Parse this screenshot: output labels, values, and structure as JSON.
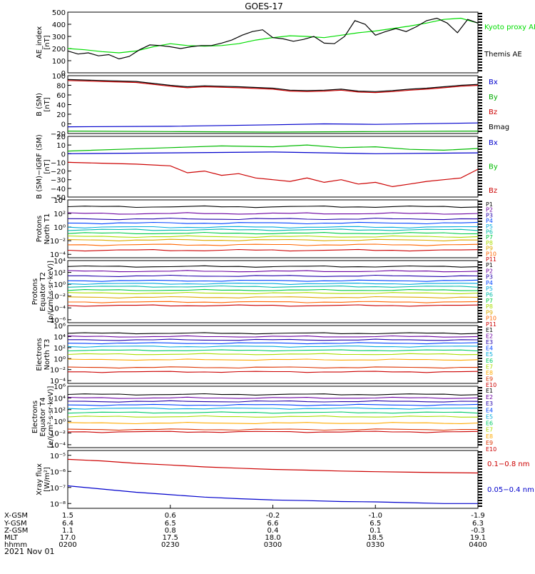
{
  "chart_data": {
    "type": "line",
    "title": "GOES-17",
    "date_label": "2021 Nov 01",
    "x_row_labels": [
      "X-GSM",
      "Y-GSM",
      "Z-GSM",
      "MLT",
      "hhmm"
    ],
    "x_columns": [
      {
        "values": [
          "1.5",
          "6.4",
          "1.1",
          "17.0",
          "0200"
        ]
      },
      {
        "values": [
          "0.6",
          "6.5",
          "0.8",
          "17.5",
          "0230"
        ]
      },
      {
        "values": [
          "-0.2",
          "6.6",
          "0.4",
          "18.0",
          "0300"
        ]
      },
      {
        "values": [
          "-1.0",
          "6.5",
          "0.1",
          "18.5",
          "0330"
        ]
      },
      {
        "values": [
          "-1.9",
          "6.3",
          "-0.3",
          "19.1",
          "0400"
        ]
      }
    ],
    "panels": [
      {
        "id": "ae",
        "ylabel": [
          "AE_index",
          "[nT]"
        ],
        "scale": "linear",
        "ylim": [
          0,
          500
        ],
        "ticks": [
          {
            "v": 0,
            "label": "0"
          },
          {
            "v": 100,
            "label": "100"
          },
          {
            "v": 200,
            "label": "200"
          },
          {
            "v": 300,
            "label": "300"
          },
          {
            "v": 400,
            "label": "400"
          },
          {
            "v": 500,
            "label": "500"
          }
        ],
        "series": [
          {
            "name": "Kyoto proxy AE",
            "color": "#00dd00",
            "x": [
              0,
              5,
              10,
              15,
              20,
              25,
              30,
              35,
              40,
              45,
              50,
              55,
              60,
              65,
              70,
              75,
              80,
              85,
              90,
              95,
              100,
              105,
              110,
              115,
              120
            ],
            "y": [
              200,
              190,
              175,
              165,
              180,
              215,
              240,
              225,
              220,
              225,
              240,
              270,
              290,
              305,
              300,
              290,
              310,
              330,
              345,
              365,
              385,
              410,
              440,
              450,
              410
            ]
          },
          {
            "name": "Themis AE",
            "color": "#000000",
            "x": [
              0,
              3,
              6,
              9,
              12,
              15,
              18,
              21,
              24,
              27,
              30,
              33,
              36,
              39,
              42,
              45,
              48,
              51,
              54,
              57,
              60,
              63,
              66,
              69,
              72,
              75,
              78,
              81,
              84,
              87,
              90,
              93,
              96,
              99,
              102,
              105,
              108,
              111,
              114,
              117,
              120
            ],
            "y": [
              180,
              155,
              165,
              140,
              150,
              115,
              135,
              190,
              230,
              225,
              215,
              200,
              215,
              225,
              225,
              245,
              270,
              310,
              340,
              355,
              290,
              280,
              260,
              275,
              300,
              245,
              240,
              300,
              430,
              400,
              310,
              340,
              365,
              340,
              380,
              430,
              450,
              410,
              330,
              440,
              410
            ]
          }
        ]
      },
      {
        "id": "b",
        "ylabel": [
          "B (SM)",
          "[nT]"
        ],
        "scale": "linear",
        "ylim": [
          -20,
          100
        ],
        "ticks": [
          {
            "v": -20,
            "label": "−20"
          },
          {
            "v": 0,
            "label": "0"
          },
          {
            "v": 20,
            "label": "20"
          },
          {
            "v": 40,
            "label": "40"
          },
          {
            "v": 60,
            "label": "60"
          },
          {
            "v": 80,
            "label": "80"
          },
          {
            "v": 100,
            "label": "100"
          }
        ],
        "series": [
          {
            "name": "Bx",
            "color": "#0000cc",
            "x": [
              0,
              30,
              60,
              75,
              90,
              120
            ],
            "y": [
              -6,
              -5,
              -2,
              0,
              -1,
              2
            ]
          },
          {
            "name": "By",
            "color": "#00aa00",
            "x": [
              0,
              30,
              60,
              90,
              120
            ],
            "y": [
              -15,
              -16,
              -17,
              -16,
              -15
            ]
          },
          {
            "name": "Bz",
            "color": "#cc0000",
            "x": [
              0,
              10,
              20,
              30,
              35,
              40,
              50,
              60,
              65,
              70,
              75,
              80,
              85,
              90,
              95,
              100,
              105,
              110,
              115,
              120
            ],
            "y": [
              90,
              88,
              86,
              78,
              75,
              77,
              75,
              72,
              68,
              67,
              68,
              70,
              66,
              65,
              67,
              70,
              72,
              75,
              78,
              80
            ]
          },
          {
            "name": "Bmag",
            "color": "#000000",
            "x": [
              0,
              10,
              20,
              30,
              35,
              40,
              50,
              60,
              65,
              70,
              75,
              80,
              85,
              90,
              95,
              100,
              105,
              110,
              115,
              120
            ],
            "y": [
              92,
              90,
              88,
              80,
              77,
              79,
              77,
              74,
              70,
              69,
              70,
              72,
              68,
              67,
              69,
              72,
              74,
              77,
              80,
              82
            ]
          }
        ]
      },
      {
        "id": "bigrf",
        "ylabel": [
          "B (SM)−IGRF (SM)",
          "[nT]"
        ],
        "scale": "linear",
        "ylim": [
          -50,
          20
        ],
        "ticks": [
          {
            "v": -50,
            "label": "−50"
          },
          {
            "v": -40,
            "label": "−40"
          },
          {
            "v": -30,
            "label": "−30"
          },
          {
            "v": -20,
            "label": "−20"
          },
          {
            "v": -10,
            "label": "−10"
          },
          {
            "v": 0,
            "label": "0"
          },
          {
            "v": 10,
            "label": "10"
          },
          {
            "v": 20,
            "label": "20"
          }
        ],
        "series": [
          {
            "name": "Bx",
            "color": "#0000cc",
            "x": [
              0,
              30,
              60,
              90,
              120
            ],
            "y": [
              0,
              1,
              2,
              0,
              1
            ]
          },
          {
            "name": "By",
            "color": "#00bb00",
            "x": [
              0,
              15,
              30,
              45,
              60,
              70,
              80,
              90,
              100,
              110,
              120
            ],
            "y": [
              3,
              5,
              7,
              9,
              8,
              10,
              7,
              8,
              5,
              4,
              6
            ]
          },
          {
            "name": "Bz",
            "color": "#cc0000",
            "x": [
              0,
              10,
              20,
              30,
              35,
              40,
              45,
              50,
              55,
              60,
              65,
              70,
              75,
              80,
              85,
              90,
              95,
              100,
              105,
              110,
              115,
              120
            ],
            "y": [
              -10,
              -11,
              -12,
              -14,
              -22,
              -20,
              -25,
              -23,
              -28,
              -30,
              -32,
              -28,
              -33,
              -30,
              -35,
              -33,
              -38,
              -35,
              -32,
              -30,
              -28,
              -18
            ]
          }
        ]
      },
      {
        "id": "p_north",
        "ylabel": [
          "Protons",
          "North T1"
        ],
        "scale": "log",
        "ylim": [
          -4.5,
          4
        ],
        "ticks": [
          {
            "v": 4,
            "label": "10⁴"
          },
          {
            "v": 2,
            "label": "10²"
          },
          {
            "v": 0,
            "label": "10⁰"
          },
          {
            "v": -2,
            "label": "10⁻²"
          },
          {
            "v": -4,
            "label": "10⁻⁴"
          }
        ],
        "channels": [
          {
            "name": "P1",
            "color": "#000000",
            "level": 3.0
          },
          {
            "name": "P2",
            "color": "#6a00a0",
            "level": 2.0
          },
          {
            "name": "P3",
            "color": "#2200aa",
            "level": 1.2
          },
          {
            "name": "P4",
            "color": "#0044ff",
            "level": 0.6
          },
          {
            "name": "P5",
            "color": "#00aadd",
            "level": 0.0
          },
          {
            "name": "P6",
            "color": "#00bbaa",
            "level": -0.4
          },
          {
            "name": "P7",
            "color": "#00cc44",
            "level": -0.9
          },
          {
            "name": "P8",
            "color": "#aadd00",
            "level": -1.4
          },
          {
            "name": "P9",
            "color": "#ddaa00",
            "level": -1.9
          },
          {
            "name": "P10",
            "color": "#ff6600",
            "level": -2.6
          },
          {
            "name": "P11",
            "color": "#cc0000",
            "level": -3.4
          }
        ]
      },
      {
        "id": "p_equator",
        "ylabel": [
          "Protons",
          "Equator T2",
          "[p/(cm²·s·sr·keV)]"
        ],
        "scale": "log",
        "ylim": [
          -6.5,
          4
        ],
        "ticks": [
          {
            "v": 4,
            "label": "10⁴"
          },
          {
            "v": 2,
            "label": "10²"
          },
          {
            "v": 0,
            "label": "10⁰"
          },
          {
            "v": -2,
            "label": "10⁻²"
          },
          {
            "v": -4,
            "label": "10⁻⁴"
          },
          {
            "v": -6,
            "label": "10⁻⁶"
          }
        ],
        "channels": [
          {
            "name": "P1",
            "color": "#000000",
            "level": 3.0
          },
          {
            "name": "P2",
            "color": "#6a00a0",
            "level": 2.2
          },
          {
            "name": "P3",
            "color": "#2200aa",
            "level": 1.4
          },
          {
            "name": "P4",
            "color": "#0044ff",
            "level": 0.6
          },
          {
            "name": "P5",
            "color": "#00aadd",
            "level": 0.1
          },
          {
            "name": "P6",
            "color": "#00bbaa",
            "level": -0.4
          },
          {
            "name": "P7",
            "color": "#00cc44",
            "level": -1.0
          },
          {
            "name": "P8",
            "color": "#aadd00",
            "level": -1.5
          },
          {
            "name": "P9",
            "color": "#ddaa00",
            "level": -2.2
          },
          {
            "name": "P10",
            "color": "#ff6600",
            "level": -3.0
          },
          {
            "name": "P11",
            "color": "#cc0000",
            "level": -3.6
          }
        ]
      },
      {
        "id": "e_north",
        "ylabel": [
          "Electrons",
          "North T3"
        ],
        "scale": "log",
        "ylim": [
          -4.5,
          6
        ],
        "ticks": [
          {
            "v": 6,
            "label": "10⁶"
          },
          {
            "v": 4,
            "label": "10⁴"
          },
          {
            "v": 2,
            "label": "10²"
          },
          {
            "v": 0,
            "label": "10⁰"
          },
          {
            "v": -2,
            "label": "10⁻²"
          },
          {
            "v": -4,
            "label": "10⁻⁴"
          }
        ],
        "channels": [
          {
            "name": "E1",
            "color": "#000000",
            "level": 4.6
          },
          {
            "name": "E2",
            "color": "#6a00a0",
            "level": 4.0
          },
          {
            "name": "E3",
            "color": "#2200aa",
            "level": 3.4
          },
          {
            "name": "E4",
            "color": "#0044ff",
            "level": 2.8
          },
          {
            "name": "E5",
            "color": "#00aadd",
            "level": 2.2
          },
          {
            "name": "E6",
            "color": "#00cc66",
            "level": 1.5
          },
          {
            "name": "E7",
            "color": "#aadd00",
            "level": 0.8
          },
          {
            "name": "E8",
            "color": "#ffaa00",
            "level": -0.2
          },
          {
            "name": "E9",
            "color": "#dd3300",
            "level": -1.6
          },
          {
            "name": "E10",
            "color": "#cc0000",
            "level": -2.4
          }
        ]
      },
      {
        "id": "e_equator",
        "ylabel": [
          "Electrons",
          "Equator T4",
          "[e/(cm²·s·sr·keV)]"
        ],
        "scale": "log",
        "ylim": [
          -4.5,
          6
        ],
        "ticks": [
          {
            "v": 6,
            "label": "10⁶"
          },
          {
            "v": 4,
            "label": "10⁴"
          },
          {
            "v": 2,
            "label": "10²"
          },
          {
            "v": 0,
            "label": "10⁰"
          },
          {
            "v": -2,
            "label": "10⁻²"
          },
          {
            "v": -4,
            "label": "10⁻⁴"
          }
        ],
        "channels": [
          {
            "name": "E1",
            "color": "#000000",
            "level": 4.6
          },
          {
            "name": "E2",
            "color": "#6a00a0",
            "level": 4.0
          },
          {
            "name": "E3",
            "color": "#2200aa",
            "level": 3.4
          },
          {
            "name": "E4",
            "color": "#0044ff",
            "level": 2.8
          },
          {
            "name": "E5",
            "color": "#00aadd",
            "level": 2.2
          },
          {
            "name": "E6",
            "color": "#00cc66",
            "level": 1.5
          },
          {
            "name": "E7",
            "color": "#aadd00",
            "level": 0.8
          },
          {
            "name": "E8",
            "color": "#ffaa00",
            "level": -0.3
          },
          {
            "name": "E9",
            "color": "#dd3300",
            "level": -1.4
          },
          {
            "name": "E10",
            "color": "#cc0000",
            "level": -1.8
          }
        ]
      },
      {
        "id": "xray",
        "ylabel": [
          "Xray flux",
          "[W/m²]"
        ],
        "scale": "log",
        "ylim": [
          -8.3,
          -4.7
        ],
        "ticks": [
          {
            "v": -5,
            "label": "10⁻⁵"
          },
          {
            "v": -6,
            "label": "10⁻⁶"
          },
          {
            "v": -7,
            "label": "10⁻⁷"
          },
          {
            "v": -8,
            "label": "10⁻⁸"
          }
        ],
        "series": [
          {
            "name": "0.1−0.8 nm",
            "color": "#cc0000",
            "x": [
              0,
              10,
              20,
              30,
              40,
              50,
              60,
              70,
              80,
              90,
              100,
              110,
              120
            ],
            "y": [
              -5.25,
              -5.35,
              -5.5,
              -5.6,
              -5.72,
              -5.8,
              -5.88,
              -5.92,
              -5.98,
              -6.02,
              -6.05,
              -6.08,
              -6.1
            ]
          },
          {
            "name": "0.05−0.4 nm",
            "color": "#0000cc",
            "x": [
              0,
              10,
              20,
              30,
              40,
              50,
              60,
              70,
              80,
              90,
              100,
              110,
              120
            ],
            "y": [
              -6.9,
              -7.1,
              -7.3,
              -7.45,
              -7.6,
              -7.7,
              -7.78,
              -7.82,
              -7.88,
              -7.9,
              -7.95,
              -8.0,
              -8.0
            ]
          }
        ]
      }
    ]
  }
}
